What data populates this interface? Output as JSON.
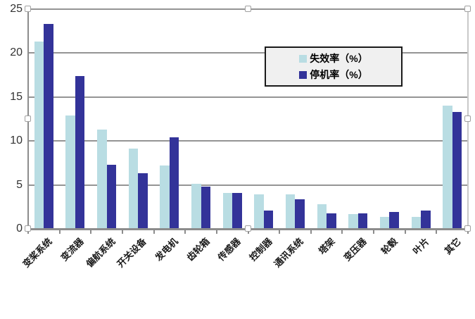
{
  "chart_data": {
    "type": "bar",
    "title": "",
    "xlabel": "",
    "ylabel": "",
    "categories": [
      "变桨系统",
      "变流器",
      "偏航系统",
      "开关设备",
      "发电机",
      "齿轮箱",
      "传感器",
      "控制器",
      "通讯系统",
      "塔架",
      "变压器",
      "轮毂",
      "叶片",
      "其它"
    ],
    "series": [
      {
        "name": "失效率（%）",
        "color": "#B9DDE3",
        "values": [
          21.3,
          12.9,
          11.3,
          9.1,
          7.2,
          5.1,
          4.1,
          3.9,
          3.9,
          2.8,
          1.7,
          1.4,
          1.4,
          14.0
        ]
      },
      {
        "name": "停机率（%）",
        "color": "#333399",
        "values": [
          23.3,
          17.4,
          7.3,
          6.3,
          10.4,
          4.8,
          4.1,
          2.1,
          3.4,
          1.8,
          1.8,
          1.9,
          2.1,
          13.3
        ]
      }
    ],
    "ylim": [
      0,
      25
    ],
    "yticks": [
      0,
      5,
      10,
      15,
      20,
      25
    ],
    "grid": true,
    "legend_position": "inside-top-center-right"
  },
  "styles": {
    "gridline_color": "#949494",
    "axis_color": "#8C8C8C",
    "selection_outline_color": "#C9C9C9",
    "legend_background": "#F0F0F0",
    "legend_border": "#1A1A1A",
    "tick_label_color": "#333333"
  }
}
